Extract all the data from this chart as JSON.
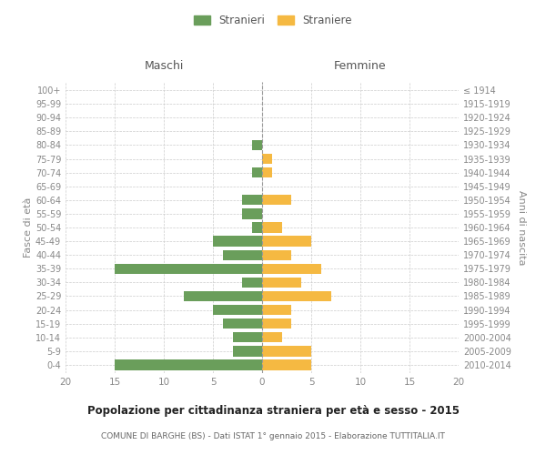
{
  "age_groups": [
    "0-4",
    "5-9",
    "10-14",
    "15-19",
    "20-24",
    "25-29",
    "30-34",
    "35-39",
    "40-44",
    "45-49",
    "50-54",
    "55-59",
    "60-64",
    "65-69",
    "70-74",
    "75-79",
    "80-84",
    "85-89",
    "90-94",
    "95-99",
    "100+"
  ],
  "birth_years": [
    "2010-2014",
    "2005-2009",
    "2000-2004",
    "1995-1999",
    "1990-1994",
    "1985-1989",
    "1980-1984",
    "1975-1979",
    "1970-1974",
    "1965-1969",
    "1960-1964",
    "1955-1959",
    "1950-1954",
    "1945-1949",
    "1940-1944",
    "1935-1939",
    "1930-1934",
    "1925-1929",
    "1920-1924",
    "1915-1919",
    "≤ 1914"
  ],
  "maschi": [
    15,
    3,
    3,
    4,
    5,
    8,
    2,
    15,
    4,
    5,
    1,
    2,
    2,
    0,
    1,
    0,
    1,
    0,
    0,
    0,
    0
  ],
  "femmine": [
    5,
    5,
    2,
    3,
    3,
    7,
    4,
    6,
    3,
    5,
    2,
    0,
    3,
    0,
    1,
    1,
    0,
    0,
    0,
    0,
    0
  ],
  "color_maschi": "#6a9e5b",
  "color_femmine": "#f5b942",
  "title": "Popolazione per cittadinanza straniera per età e sesso - 2015",
  "subtitle": "COMUNE DI BARGHE (BS) - Dati ISTAT 1° gennaio 2015 - Elaborazione TUTTITALIA.IT",
  "ylabel_left": "Fasce di età",
  "ylabel_right": "Anni di nascita",
  "xlabel_maschi": "Maschi",
  "xlabel_femmine": "Femmine",
  "legend_maschi": "Stranieri",
  "legend_femmine": "Straniere",
  "xlim": 20,
  "background_color": "#ffffff",
  "grid_color": "#cccccc",
  "tick_label_color": "#888888"
}
